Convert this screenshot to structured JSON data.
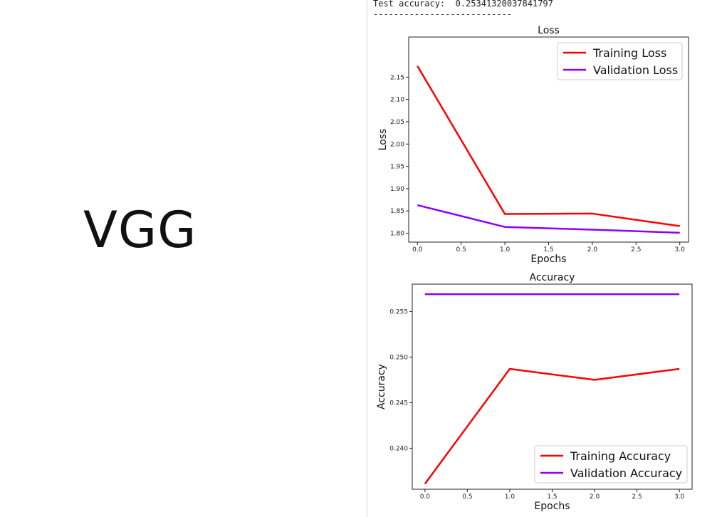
{
  "left_panel": {
    "title": "VGG"
  },
  "console": {
    "test_accuracy_label": "Test accuracy:",
    "test_accuracy_value": "0.25341320037841797",
    "separator": "---------------------------"
  },
  "colors": {
    "training": "#ff0000",
    "validation": "#8b00ff"
  },
  "chart_data": [
    {
      "type": "line",
      "title": "Loss",
      "xlabel": "Epochs",
      "ylabel": "Loss",
      "x": [
        0,
        1,
        2,
        3
      ],
      "xlim": [
        -0.1,
        3.1
      ],
      "ylim": [
        1.78,
        2.24
      ],
      "xticks": [
        0.0,
        0.5,
        1.0,
        1.5,
        2.0,
        2.5,
        3.0
      ],
      "xtick_labels": [
        "0.0",
        "0.5",
        "1.0",
        "1.5",
        "2.0",
        "2.5",
        "3.0"
      ],
      "yticks": [
        1.8,
        1.85,
        1.9,
        1.95,
        2.0,
        2.05,
        2.1,
        2.15
      ],
      "ytick_labels": [
        "1.80",
        "1.85",
        "1.90",
        "1.95",
        "2.00",
        "2.05",
        "2.10",
        "2.15"
      ],
      "legend_position": "top-right",
      "series": [
        {
          "name": "Training Loss",
          "color": "#ff0000",
          "values": [
            2.175,
            1.843,
            1.844,
            1.816
          ]
        },
        {
          "name": "Validation Loss",
          "color": "#8b00ff",
          "values": [
            1.863,
            1.814,
            1.808,
            1.801
          ]
        }
      ]
    },
    {
      "type": "line",
      "title": "Accuracy",
      "xlabel": "Epochs",
      "ylabel": "Accuracy",
      "x": [
        0,
        1,
        2,
        3
      ],
      "xlim": [
        -0.15,
        3.15
      ],
      "ylim": [
        0.2355,
        0.258
      ],
      "xticks": [
        0.0,
        0.5,
        1.0,
        1.5,
        2.0,
        2.5,
        3.0
      ],
      "xtick_labels": [
        "0.0",
        "0.5",
        "1.0",
        "1.5",
        "2.0",
        "2.5",
        "3.0"
      ],
      "yticks": [
        0.24,
        0.245,
        0.25,
        0.255
      ],
      "ytick_labels": [
        "0.240",
        "0.245",
        "0.250",
        "0.255"
      ],
      "legend_position": "bottom-right",
      "series": [
        {
          "name": "Training Accuracy",
          "color": "#ff0000",
          "values": [
            0.2361,
            0.2487,
            0.2475,
            0.2487
          ]
        },
        {
          "name": "Validation Accuracy",
          "color": "#8b00ff",
          "values": [
            0.2569,
            0.2569,
            0.2569,
            0.2569
          ]
        }
      ]
    }
  ]
}
